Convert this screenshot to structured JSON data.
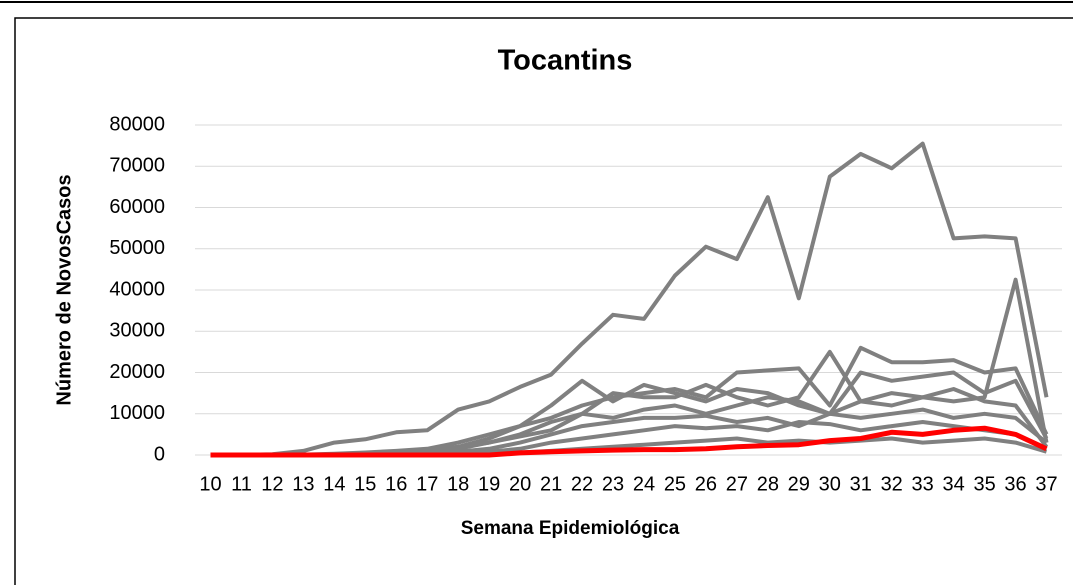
{
  "chart_data": {
    "type": "line",
    "title": "Tocantins",
    "x_label": "Semana Epidemiológica",
    "y_label": "Número de NovosCasos",
    "categories": [
      "10",
      "11",
      "12",
      "13",
      "14",
      "15",
      "16",
      "17",
      "18",
      "19",
      "20",
      "21",
      "22",
      "23",
      "24",
      "25",
      "26",
      "27",
      "28",
      "29",
      "30",
      "31",
      "32",
      "33",
      "34",
      "35",
      "36",
      "37"
    ],
    "ylim": [
      0,
      80000
    ],
    "yticks": [
      0,
      10000,
      20000,
      30000,
      40000,
      50000,
      60000,
      70000,
      80000
    ],
    "grid": true,
    "series": [
      {
        "color": "#808080",
        "values": [
          0,
          0,
          200,
          1000,
          3000,
          3800,
          5500,
          6000,
          11000,
          13000,
          16500,
          19500,
          27000,
          34000,
          33000,
          43500,
          50500,
          47500,
          62500,
          38000,
          67500,
          73000,
          69500,
          75500,
          52500,
          53000,
          52500,
          14000
        ]
      },
      {
        "color": "#808080",
        "values": [
          0,
          0,
          0,
          100,
          300,
          600,
          1000,
          1500,
          3000,
          5000,
          7000,
          9000,
          12000,
          14000,
          15000,
          16000,
          14000,
          20000,
          20500,
          21000,
          12000,
          26000,
          22500,
          22500,
          23000,
          20000,
          21000,
          5000
        ]
      },
      {
        "color": "#808080",
        "values": [
          0,
          0,
          0,
          0,
          200,
          400,
          800,
          1200,
          2000,
          3000,
          4500,
          6000,
          10000,
          9000,
          11000,
          12000,
          10000,
          12000,
          14000,
          13000,
          10000,
          13000,
          12000,
          14000,
          13000,
          14000,
          42500,
          3000
        ]
      },
      {
        "color": "#808080",
        "values": [
          0,
          0,
          0,
          0,
          100,
          300,
          500,
          1000,
          2000,
          4000,
          7000,
          12000,
          18000,
          13000,
          17000,
          15000,
          13000,
          16000,
          15000,
          12000,
          10000,
          20000,
          18000,
          19000,
          20000,
          15000,
          18000,
          4000
        ]
      },
      {
        "color": "#808080",
        "values": [
          0,
          0,
          0,
          0,
          0,
          100,
          300,
          600,
          1500,
          3000,
          5000,
          8000,
          10000,
          15000,
          14000,
          14000,
          17000,
          14000,
          12000,
          14000,
          25000,
          13000,
          15000,
          14000,
          16000,
          13000,
          12000,
          2000
        ]
      },
      {
        "color": "#808080",
        "values": [
          0,
          0,
          0,
          0,
          0,
          50,
          100,
          300,
          800,
          1500,
          3000,
          5000,
          7000,
          8000,
          9000,
          9000,
          9500,
          8000,
          9000,
          7000,
          10000,
          9000,
          10000,
          11000,
          9000,
          10000,
          9000,
          3000
        ]
      },
      {
        "color": "#808080",
        "values": [
          0,
          0,
          0,
          0,
          0,
          0,
          50,
          100,
          300,
          800,
          1500,
          3000,
          4000,
          5000,
          6000,
          7000,
          6500,
          7000,
          6000,
          8000,
          7500,
          6000,
          7000,
          8000,
          7000,
          6000,
          5000,
          1500
        ]
      },
      {
        "color": "#808080",
        "values": [
          0,
          0,
          0,
          0,
          0,
          0,
          0,
          50,
          100,
          300,
          600,
          1000,
          1500,
          2000,
          2500,
          3000,
          3500,
          4000,
          3000,
          3500,
          3000,
          3500,
          4000,
          3000,
          3500,
          4000,
          3000,
          800
        ]
      },
      {
        "color": "#ff0000",
        "values": [
          0,
          0,
          0,
          0,
          0,
          0,
          0,
          0,
          0,
          0,
          500,
          800,
          1000,
          1200,
          1300,
          1300,
          1500,
          2000,
          2300,
          2500,
          3500,
          4000,
          5500,
          5000,
          6000,
          6500,
          5000,
          1500
        ]
      }
    ]
  }
}
